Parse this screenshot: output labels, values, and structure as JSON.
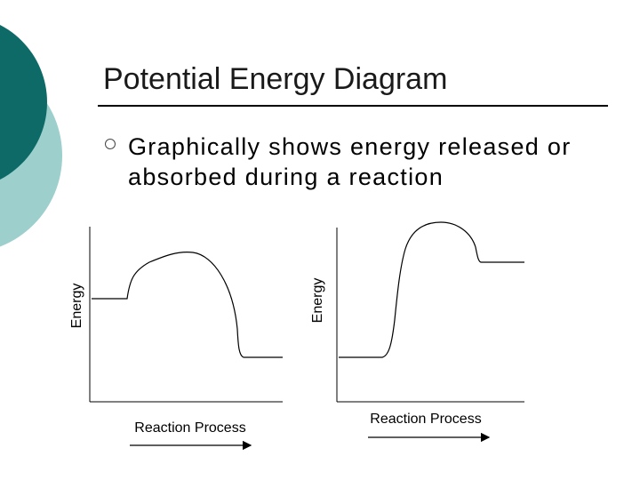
{
  "slide": {
    "title": "Potential Energy Diagram",
    "bullets": [
      "Graphically shows energy released or absorbed during a reaction"
    ]
  },
  "diagrams": [
    {
      "reaction": "exothermic",
      "y_axis_label": "Energy",
      "x_axis_label": "Reaction Process"
    },
    {
      "reaction": "endothermic",
      "y_axis_label": "Energy",
      "x_axis_label": "Reaction Process"
    }
  ],
  "theme": {
    "teal_dark": "#0e6a66",
    "teal_light": "#9dcfcd",
    "line": "#000000"
  }
}
